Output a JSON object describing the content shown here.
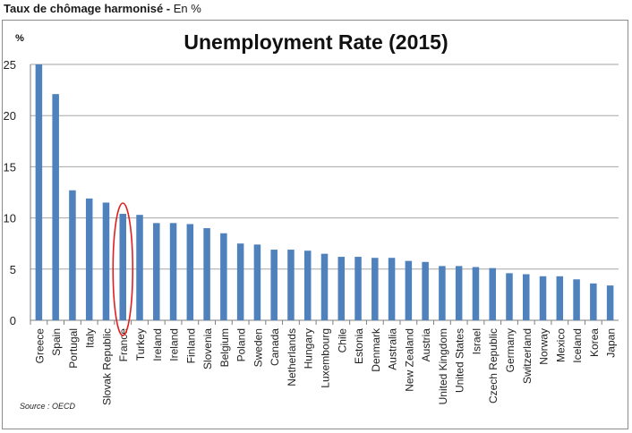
{
  "header": {
    "title_bold": "Taux de chômage harmonisé -",
    "title_rest": " En %"
  },
  "source": "Source : OECD",
  "chart_data": {
    "type": "bar",
    "title": "Unemployment Rate (2015)",
    "ylabel": "%",
    "xlabel": "",
    "ylim": [
      0,
      25
    ],
    "yticks": [
      0,
      5,
      10,
      15,
      20,
      25
    ],
    "grid": true,
    "bar_color": "#4f81bd",
    "highlight": {
      "category": "France",
      "shape": "ellipse",
      "color": "#e02020"
    },
    "categories": [
      "Greece",
      "Spain",
      "Portugal",
      "Italy",
      "Slovak Republic",
      "France",
      "Turkey",
      "Ireland",
      "Ireland",
      "Finland",
      "Slovenia",
      "Belgium",
      "Poland",
      "Sweden",
      "Canada",
      "Netherlands",
      "Hungary",
      "Luxembourg",
      "Chile",
      "Estonia",
      "Denmark",
      "Australia",
      "New Zealand",
      "Austria",
      "United Kingdom",
      "United States",
      "Israel",
      "Czech Republic",
      "Germany",
      "Switzerland",
      "Norway",
      "Mexico",
      "Iceland",
      "Korea",
      "Japan"
    ],
    "values": [
      25.0,
      22.1,
      12.7,
      11.9,
      11.5,
      10.4,
      10.3,
      9.5,
      9.5,
      9.4,
      9.0,
      8.5,
      7.5,
      7.4,
      6.9,
      6.9,
      6.8,
      6.5,
      6.2,
      6.2,
      6.1,
      6.1,
      5.8,
      5.7,
      5.3,
      5.3,
      5.2,
      5.1,
      4.6,
      4.5,
      4.3,
      4.3,
      4.0,
      3.6,
      3.4
    ]
  }
}
